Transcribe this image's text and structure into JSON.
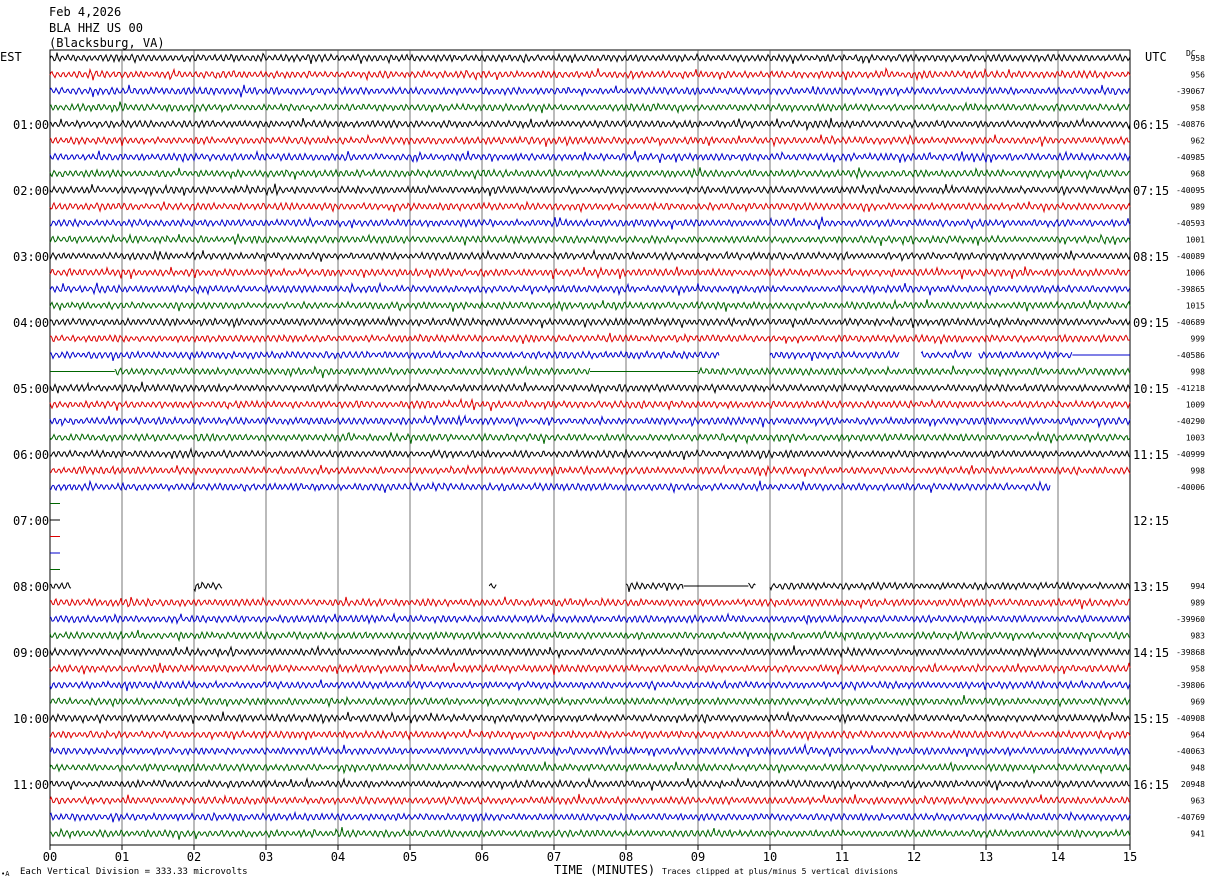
{
  "header": {
    "date": "Feb 4,2026",
    "station": "BLA HHZ US 00",
    "location": "(Blacksburg, VA)"
  },
  "left_tz": "EST",
  "right_tz": "UTC",
  "dc_header": "DC",
  "footer": {
    "scale": "Each Vertical Division =  333.33 microvolts",
    "clip": "Traces clipped at plus/minus 5 vertical divisions",
    "corner": "•A"
  },
  "chart_data": {
    "type": "line",
    "title": "",
    "xlabel": "TIME (MINUTES)",
    "ylabel": "",
    "x_tick_labels": [
      "00",
      "01",
      "02",
      "03",
      "04",
      "05",
      "06",
      "07",
      "08",
      "09",
      "10",
      "11",
      "12",
      "13",
      "14",
      "15"
    ],
    "xlim": [
      0,
      15
    ],
    "grid": true,
    "trace_colors": [
      "#000000",
      "#dd0000",
      "#0000cc",
      "#006600"
    ],
    "left_hour_labels": [
      {
        "row": 4,
        "label": "01:00"
      },
      {
        "row": 8,
        "label": "02:00"
      },
      {
        "row": 12,
        "label": "03:00"
      },
      {
        "row": 16,
        "label": "04:00"
      },
      {
        "row": 20,
        "label": "05:00"
      },
      {
        "row": 24,
        "label": "06:00"
      },
      {
        "row": 28,
        "label": "07:00"
      },
      {
        "row": 32,
        "label": "08:00"
      },
      {
        "row": 36,
        "label": "09:00"
      },
      {
        "row": 40,
        "label": "10:00"
      },
      {
        "row": 44,
        "label": "11:00"
      }
    ],
    "right_hour_labels": [
      {
        "row": 4,
        "label": "06:15"
      },
      {
        "row": 8,
        "label": "07:15"
      },
      {
        "row": 12,
        "label": "08:15"
      },
      {
        "row": 16,
        "label": "09:15"
      },
      {
        "row": 20,
        "label": "10:15"
      },
      {
        "row": 24,
        "label": "11:15"
      },
      {
        "row": 28,
        "label": "12:15"
      },
      {
        "row": 32,
        "label": "13:15"
      },
      {
        "row": 36,
        "label": "14:15"
      },
      {
        "row": 40,
        "label": "15:15"
      },
      {
        "row": 44,
        "label": "16:15"
      }
    ],
    "dc_offsets": [
      "958",
      "956",
      "-39067",
      "958",
      "-40876",
      "962",
      "-40985",
      "968",
      "-40095",
      "989",
      "-40593",
      "1001",
      "-40089",
      "1006",
      "-39865",
      "1015",
      "-40689",
      "999",
      "-40586",
      "998",
      "-41218",
      "1009",
      "-40290",
      "1003",
      "-40999",
      "998",
      "-40006",
      "",
      "",
      "",
      "",
      "",
      "994",
      "989",
      "-39960",
      "983",
      "-39868",
      "958",
      "-39806",
      "969",
      "-40908",
      "964",
      "-40063",
      "948",
      "20948",
      "963",
      "-40769",
      "941"
    ],
    "traces": [
      {
        "row": 0,
        "segments": [
          [
            0,
            15
          ]
        ]
      },
      {
        "row": 1,
        "segments": [
          [
            0,
            15
          ]
        ]
      },
      {
        "row": 2,
        "segments": [
          [
            0,
            15
          ]
        ]
      },
      {
        "row": 3,
        "segments": [
          [
            0,
            15
          ]
        ]
      },
      {
        "row": 4,
        "segments": [
          [
            0,
            15
          ]
        ]
      },
      {
        "row": 5,
        "segments": [
          [
            0,
            15
          ]
        ]
      },
      {
        "row": 6,
        "segments": [
          [
            0,
            15
          ]
        ]
      },
      {
        "row": 7,
        "segments": [
          [
            0,
            15
          ]
        ]
      },
      {
        "row": 8,
        "segments": [
          [
            0,
            15
          ]
        ]
      },
      {
        "row": 9,
        "segments": [
          [
            0,
            15
          ]
        ]
      },
      {
        "row": 10,
        "segments": [
          [
            0,
            15
          ]
        ]
      },
      {
        "row": 11,
        "segments": [
          [
            0,
            15
          ]
        ]
      },
      {
        "row": 12,
        "segments": [
          [
            0,
            15
          ]
        ]
      },
      {
        "row": 13,
        "segments": [
          [
            0,
            15
          ]
        ]
      },
      {
        "row": 14,
        "segments": [
          [
            0,
            15
          ]
        ]
      },
      {
        "row": 15,
        "segments": [
          [
            0,
            15
          ]
        ]
      },
      {
        "row": 16,
        "segments": [
          [
            0,
            15
          ]
        ]
      },
      {
        "row": 17,
        "segments": [
          [
            0,
            15
          ]
        ]
      },
      {
        "row": 18,
        "segments": [
          [
            0,
            9.3
          ],
          [
            10.0,
            11.8
          ],
          [
            12.1,
            12.8
          ],
          [
            12.9,
            14.2
          ]
        ],
        "flat": [
          [
            14.2,
            15
          ]
        ]
      },
      {
        "row": 19,
        "segments": [
          [
            0.9,
            7.5
          ],
          [
            9.0,
            15
          ]
        ],
        "flat": [
          [
            0,
            0.9
          ],
          [
            7.5,
            9.0
          ]
        ]
      },
      {
        "row": 20,
        "segments": [
          [
            0,
            15
          ]
        ]
      },
      {
        "row": 21,
        "segments": [
          [
            0,
            15
          ]
        ]
      },
      {
        "row": 22,
        "segments": [
          [
            0,
            15
          ]
        ]
      },
      {
        "row": 23,
        "segments": [
          [
            0,
            15
          ]
        ]
      },
      {
        "row": 24,
        "segments": [
          [
            0,
            15
          ]
        ]
      },
      {
        "row": 25,
        "segments": [
          [
            0,
            15
          ]
        ]
      },
      {
        "row": 26,
        "segments": [
          [
            0,
            13.9
          ]
        ]
      },
      {
        "row": 27,
        "segments": [],
        "marks": [
          0.0
        ]
      },
      {
        "row": 28,
        "segments": [],
        "marks": [
          0.0
        ]
      },
      {
        "row": 29,
        "segments": [],
        "marks": [
          0.0
        ]
      },
      {
        "row": 30,
        "segments": [],
        "marks": [
          0.0
        ]
      },
      {
        "row": 31,
        "segments": [],
        "marks": [
          0.0
        ]
      },
      {
        "row": 32,
        "segments": [
          [
            0,
            0.3
          ],
          [
            2.0,
            2.4
          ],
          [
            6.1,
            6.2
          ],
          [
            8.0,
            8.8
          ],
          [
            9.7,
            9.8
          ],
          [
            10.0,
            15
          ]
        ],
        "flat": [
          [
            8.8,
            9.7
          ]
        ]
      },
      {
        "row": 33,
        "segments": [
          [
            0,
            15
          ]
        ]
      },
      {
        "row": 34,
        "segments": [
          [
            0,
            15
          ]
        ]
      },
      {
        "row": 35,
        "segments": [
          [
            0,
            15
          ]
        ]
      },
      {
        "row": 36,
        "segments": [
          [
            0,
            15
          ]
        ]
      },
      {
        "row": 37,
        "segments": [
          [
            0,
            15
          ]
        ]
      },
      {
        "row": 38,
        "segments": [
          [
            0,
            15
          ]
        ]
      },
      {
        "row": 39,
        "segments": [
          [
            0,
            15
          ]
        ]
      },
      {
        "row": 40,
        "segments": [
          [
            0,
            15
          ]
        ]
      },
      {
        "row": 41,
        "segments": [
          [
            0,
            15
          ]
        ]
      },
      {
        "row": 42,
        "segments": [
          [
            0,
            15
          ]
        ]
      },
      {
        "row": 43,
        "segments": [
          [
            0,
            15
          ]
        ]
      },
      {
        "row": 44,
        "segments": [
          [
            0,
            15
          ]
        ]
      },
      {
        "row": 45,
        "segments": [
          [
            0,
            15
          ]
        ]
      },
      {
        "row": 46,
        "segments": [
          [
            0,
            15
          ]
        ]
      },
      {
        "row": 47,
        "segments": [
          [
            0,
            15
          ]
        ]
      }
    ]
  }
}
